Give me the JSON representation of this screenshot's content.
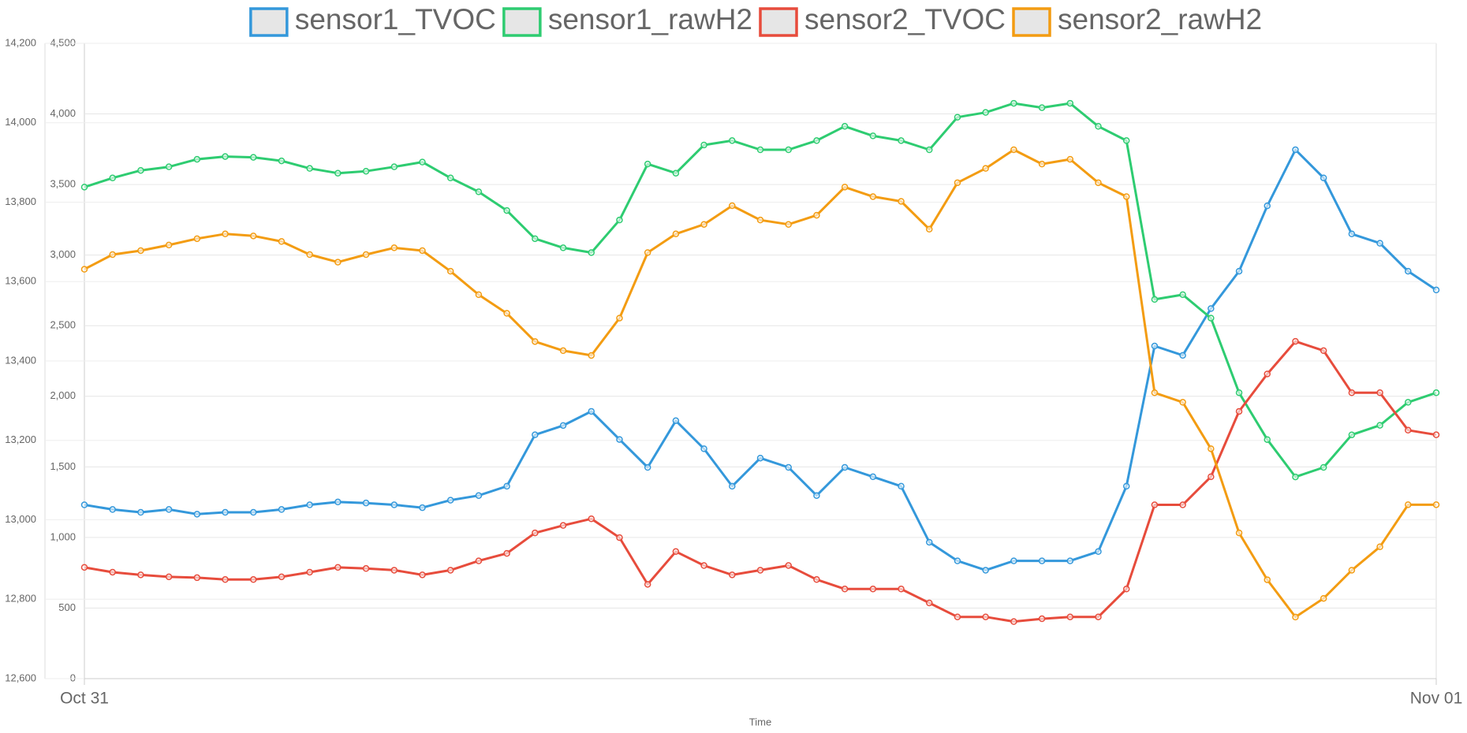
{
  "chart_data": {
    "type": "line",
    "x_title": "Time",
    "x": [
      0,
      0.5,
      1,
      1.5,
      2,
      2.5,
      3,
      3.5,
      4,
      4.5,
      5,
      5.5,
      6,
      6.5,
      7,
      7.5,
      8,
      8.5,
      9,
      9.5,
      10,
      10.5,
      11,
      11.5,
      12,
      12.5,
      13,
      13.5,
      14,
      14.5,
      15,
      15.5,
      16,
      16.5,
      17,
      17.5,
      18,
      18.5,
      19,
      19.5,
      20,
      20.5,
      21,
      21.5,
      22,
      22.5,
      23,
      23.5,
      24
    ],
    "xlim": [
      0,
      24
    ],
    "xticks": [
      {
        "value": 0,
        "label": "Oct 31"
      },
      {
        "value": 24,
        "label": "Nov 01"
      }
    ],
    "ylim": [
      0,
      4500
    ],
    "yticks": [
      0,
      {
        "value": 500,
        "label": "500"
      },
      {
        "value": 1000,
        "label": "1,000"
      },
      {
        "value": 1500,
        "label": "1,500"
      },
      {
        "value": 2000,
        "label": "2,000"
      },
      {
        "value": 2500,
        "label": "2,500"
      },
      {
        "value": 3000,
        "label": "3,000"
      },
      {
        "value": 3500,
        "label": "3,500"
      },
      {
        "value": 4000,
        "label": "4,000"
      },
      {
        "value": 4500,
        "label": "4,500"
      }
    ],
    "y2lim": [
      12600,
      14200
    ],
    "y2ticks": [
      {
        "value": 12600,
        "label": "12,600"
      },
      {
        "value": 12800,
        "label": "12,800"
      },
      {
        "value": 13000,
        "label": "13,000"
      },
      {
        "value": 13200,
        "label": "13,200"
      },
      {
        "value": 13400,
        "label": "13,400"
      },
      {
        "value": 13600,
        "label": "13,600"
      },
      {
        "value": 13800,
        "label": "13,800"
      },
      {
        "value": 14000,
        "label": "14,000"
      },
      {
        "value": 14200,
        "label": "14,200"
      }
    ],
    "grid": true,
    "legend": "top",
    "series": [
      {
        "name": "sensor1_TVOC",
        "color": "#3498db",
        "values": [
          1231,
          1198,
          1178,
          1198,
          1165,
          1178,
          1178,
          1198,
          1231,
          1251,
          1244,
          1231,
          1211,
          1264,
          1297,
          1363,
          1727,
          1793,
          1893,
          1694,
          1496,
          1827,
          1628,
          1363,
          1562,
          1496,
          1297,
          1496,
          1430,
          1363,
          966,
          834,
          768,
          834,
          834,
          834,
          900,
          1363,
          2356,
          2290,
          2621,
          2886,
          3349,
          3746,
          3547,
          3150,
          3084,
          2886,
          2753
        ]
      },
      {
        "name": "sensor1_rawH2",
        "color": "#2ecc71",
        "axis": "y2",
        "values": [
          13838,
          13861,
          13880,
          13889,
          13908,
          13915,
          13913,
          13904,
          13885,
          13873,
          13878,
          13889,
          13901,
          13861,
          13826,
          13779,
          13708,
          13685,
          13673,
          13755,
          13896,
          13873,
          13944,
          13955,
          13932,
          13932,
          13955,
          13991,
          13967,
          13955,
          13932,
          14014,
          14026,
          14049,
          14038,
          14049,
          13991,
          13955,
          13555,
          13567,
          13508,
          13320,
          13202,
          13108,
          13132,
          13214,
          13238,
          13296,
          13320
        ]
      },
      {
        "name": "sensor2_TVOC",
        "color": "#e74c3c",
        "values": [
          788,
          754,
          735,
          721,
          715,
          702,
          702,
          721,
          754,
          788,
          780,
          768,
          735,
          768,
          834,
          887,
          1032,
          1085,
          1132,
          999,
          668,
          900,
          801,
          735,
          768,
          801,
          702,
          635,
          635,
          635,
          536,
          437,
          437,
          404,
          424,
          437,
          437,
          635,
          1231,
          1231,
          1430,
          1893,
          2158,
          2389,
          2323,
          2025,
          2025,
          1760,
          1727
        ]
      },
      {
        "name": "sensor2_rawH2",
        "color": "#f39c12",
        "axis": "y2",
        "values": [
          13631,
          13668,
          13678,
          13692,
          13708,
          13720,
          13715,
          13701,
          13668,
          13649,
          13668,
          13685,
          13678,
          13626,
          13567,
          13520,
          13449,
          13426,
          13414,
          13508,
          13673,
          13720,
          13744,
          13791,
          13755,
          13744,
          13767,
          13838,
          13814,
          13802,
          13732,
          13849,
          13885,
          13932,
          13896,
          13908,
          13849,
          13814,
          13320,
          13296,
          13179,
          12967,
          12849,
          12755,
          12802,
          12873,
          12932,
          13038,
          13038
        ]
      }
    ]
  }
}
